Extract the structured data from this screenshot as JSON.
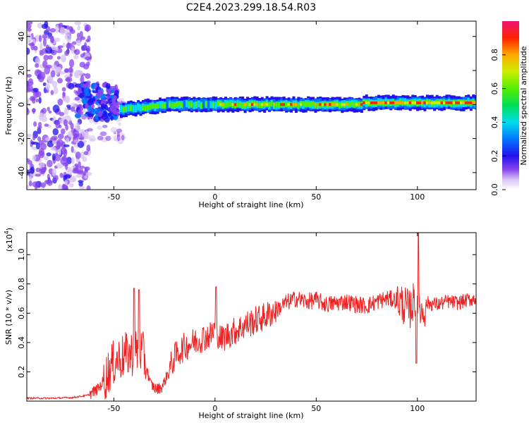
{
  "title": "C2E4.2023.299.18.54.R03",
  "chart_data": [
    {
      "type": "heatmap",
      "name": "spectrogram",
      "xlabel": "Height of straight line (km)",
      "ylabel": "Frequency (Hz)",
      "xlim": [
        -93,
        129
      ],
      "ylim": [
        -50,
        49
      ],
      "xticks": [
        -50,
        0,
        50,
        100
      ],
      "yticks": [
        -40,
        -20,
        0,
        20,
        40
      ],
      "colorbar": {
        "label": "Normalized spectral amplitude",
        "range": [
          0.0,
          1.0
        ],
        "ticks": [
          "0.0",
          "0.2",
          "0.4",
          "0.6",
          "0.8"
        ],
        "tick_values": [
          0.0,
          0.2,
          0.4,
          0.6,
          0.8
        ]
      },
      "features": [
        {
          "description": "broadband low-amplitude noise",
          "x_range": [
            -93,
            -62
          ],
          "freq_range": [
            -50,
            49
          ],
          "amplitude": 0.15
        },
        {
          "description": "band near 0 Hz broadening",
          "x_range": [
            -67,
            -48
          ],
          "freq_range": [
            -8,
            12
          ],
          "amplitude": 0.3
        },
        {
          "description": "main band",
          "x_range": [
            -47,
            129
          ],
          "center_freq": [
            -3,
            1
          ],
          "amplitude_range": [
            0.3,
            1.0
          ]
        }
      ]
    },
    {
      "type": "line",
      "name": "snr",
      "xlabel": "Height of straight line (km)",
      "ylabel": "SNR (10 * v/v)",
      "scale_label": "(x10",
      "scale_exponent": "4",
      "xlim": [
        -93,
        129
      ],
      "ylim": [
        0.0,
        1.15
      ],
      "xticks": [
        -50,
        0,
        50,
        100
      ],
      "yticks": [
        0.2,
        0.4,
        0.6,
        0.8,
        1.0
      ],
      "color": "#ee2222",
      "series": [
        {
          "name": "SNR",
          "x": [
            -93,
            -80,
            -70,
            -63,
            -58,
            -55,
            -52,
            -49,
            -46,
            -43,
            -40,
            -37,
            -35,
            -32,
            -29,
            -26,
            -23,
            -20,
            -17,
            -14,
            -11,
            -8,
            -5,
            -2,
            0,
            3,
            6,
            10,
            15,
            20,
            25,
            30,
            35,
            40,
            45,
            50,
            55,
            60,
            65,
            70,
            75,
            80,
            85,
            90,
            93,
            96,
            99,
            100,
            102,
            105,
            110,
            115,
            120,
            125,
            129
          ],
          "y": [
            0.02,
            0.02,
            0.025,
            0.04,
            0.08,
            0.14,
            0.22,
            0.28,
            0.3,
            0.32,
            0.33,
            0.35,
            0.3,
            0.12,
            0.08,
            0.1,
            0.2,
            0.3,
            0.35,
            0.38,
            0.4,
            0.42,
            0.44,
            0.45,
            0.5,
            0.42,
            0.45,
            0.48,
            0.52,
            0.55,
            0.58,
            0.62,
            0.67,
            0.7,
            0.68,
            0.69,
            0.66,
            0.67,
            0.68,
            0.66,
            0.65,
            0.68,
            0.7,
            0.69,
            0.66,
            0.62,
            0.7,
            0.75,
            0.6,
            0.67,
            0.66,
            0.68,
            0.67,
            0.69,
            0.7
          ]
        }
      ],
      "peaks": [
        {
          "x": -37.5,
          "y": 0.76
        },
        {
          "x": -40,
          "y": 0.77
        },
        {
          "x": 0.5,
          "y": 0.78
        },
        {
          "x": 100.5,
          "y": 1.15
        },
        {
          "x": 99.5,
          "y": 0.26
        }
      ]
    }
  ]
}
